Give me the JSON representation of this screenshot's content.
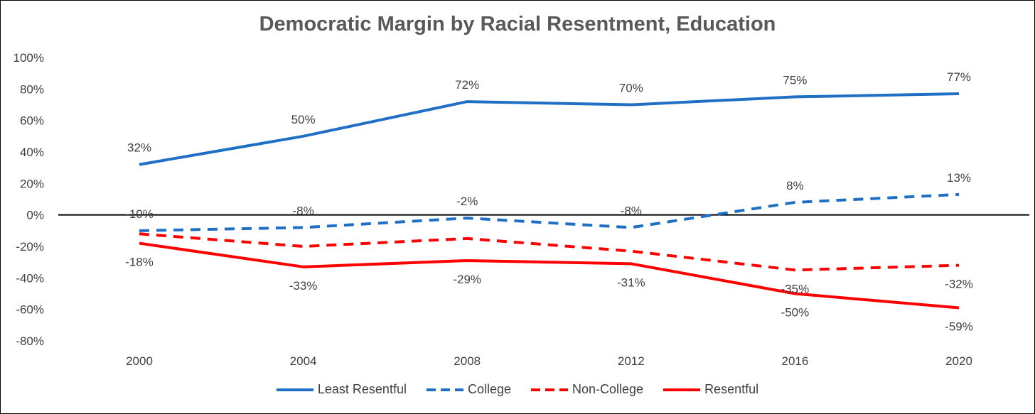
{
  "chart_data": {
    "type": "line",
    "title": "Democratic Margin by Racial Resentment, Education",
    "x": [
      "2000",
      "2004",
      "2008",
      "2012",
      "2016",
      "2020"
    ],
    "y_ticks": [
      "100%",
      "80%",
      "60%",
      "40%",
      "20%",
      "0%",
      "-20%",
      "-40%",
      "-60%",
      "-80%"
    ],
    "ylim": [
      -80,
      100
    ],
    "grid": false,
    "legend_position": "bottom",
    "series": [
      {
        "name": "Least Resentful",
        "values": [
          32,
          50,
          72,
          70,
          75,
          77
        ],
        "labels": [
          "32%",
          "50%",
          "72%",
          "70%",
          "75%",
          "77%"
        ],
        "color": "#1f6fc5",
        "dash": "solid",
        "label_pos": "above"
      },
      {
        "name": "College",
        "values": [
          -10,
          -8,
          -2,
          -8,
          8,
          13
        ],
        "labels": [
          "-10%",
          "-8%",
          "-2%",
          "-8%",
          "8%",
          "13%"
        ],
        "color": "#1f6fc5",
        "dash": "dashed",
        "label_pos": "above"
      },
      {
        "name": "Non-College",
        "values": [
          -12,
          -20,
          -15,
          -23,
          -35,
          -32
        ],
        "labels": [
          "",
          "",
          "",
          "",
          "-35%",
          "-32%"
        ],
        "color": "#ff0000",
        "dash": "dashed",
        "label_pos": "below"
      },
      {
        "name": "Resentful",
        "values": [
          -18,
          -33,
          -29,
          -31,
          -50,
          -59
        ],
        "labels": [
          "-18%",
          "-33%",
          "-29%",
          "-31%",
          "-50%",
          "-59%"
        ],
        "color": "#ff0000",
        "dash": "solid",
        "label_pos": "below"
      }
    ]
  }
}
